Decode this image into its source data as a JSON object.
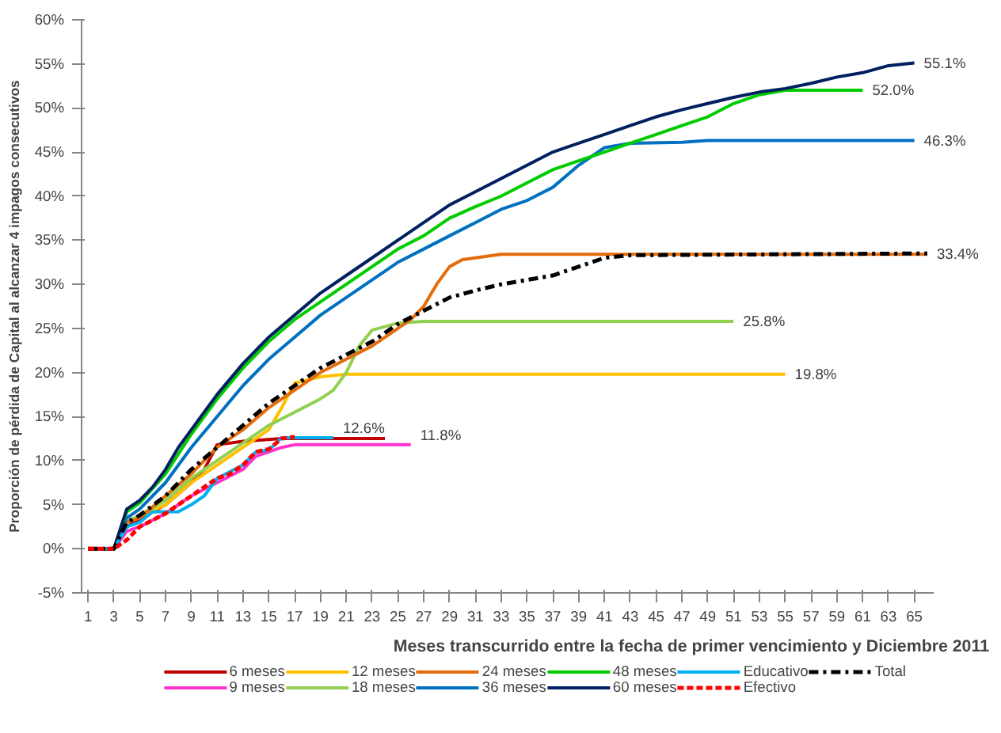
{
  "chart_data": {
    "type": "line",
    "xlabel": "Meses transcurrido entre la fecha de primer vencimiento y Diciembre 2011",
    "ylabel": "Proporción de pérdida de Capital al alcanzar 4 impagos consecutivos",
    "xlim": [
      0.5,
      66.5
    ],
    "xticks": [
      1,
      3,
      5,
      7,
      9,
      11,
      13,
      15,
      17,
      19,
      21,
      23,
      25,
      27,
      29,
      31,
      33,
      35,
      37,
      39,
      41,
      43,
      45,
      47,
      49,
      51,
      53,
      55,
      57,
      59,
      61,
      63,
      65
    ],
    "ylim": [
      -5,
      60
    ],
    "yticks": [
      {
        "value": -5,
        "label": "-5%"
      },
      {
        "value": 0,
        "label": "0%"
      },
      {
        "value": 5,
        "label": "5%"
      },
      {
        "value": 10,
        "label": "10%"
      },
      {
        "value": 15,
        "label": "15%"
      },
      {
        "value": 20,
        "label": "20%"
      },
      {
        "value": 25,
        "label": "25%"
      },
      {
        "value": 30,
        "label": "30%"
      },
      {
        "value": 35,
        "label": "35%"
      },
      {
        "value": 40,
        "label": "40%"
      },
      {
        "value": 45,
        "label": "45%"
      },
      {
        "value": 50,
        "label": "50%"
      },
      {
        "value": 55,
        "label": "55%"
      },
      {
        "value": 60,
        "label": "60%"
      }
    ],
    "grid": false,
    "legend": "bottom",
    "marker": "none",
    "series": [
      {
        "name": "6 meses",
        "color": "#c00000",
        "x": [
          1,
          3,
          4,
          7,
          9,
          10,
          11,
          13,
          16,
          24
        ],
        "values": [
          0,
          0,
          2.5,
          5,
          7.5,
          9,
          11.8,
          12.2,
          12.5,
          12.5
        ]
      },
      {
        "name": "9 meses",
        "color": "#ff33cc",
        "x": [
          1,
          3,
          4,
          5,
          7,
          9,
          11,
          13,
          14,
          15,
          16,
          17,
          26
        ],
        "values": [
          0,
          0,
          2,
          2.5,
          4,
          6,
          7.5,
          9,
          10.5,
          11,
          11.5,
          11.8,
          11.8
        ]
      },
      {
        "name": "12 meses",
        "color": "#ffc000",
        "x": [
          1,
          3,
          4,
          7,
          9,
          11,
          13,
          15,
          16,
          17,
          19,
          21,
          55
        ],
        "values": [
          0,
          0,
          3,
          5,
          7.5,
          9.5,
          11.5,
          13.5,
          16,
          18.8,
          19.5,
          19.8,
          19.8
        ]
      },
      {
        "name": "18 meses",
        "color": "#92d050",
        "x": [
          1,
          3,
          4,
          7,
          9,
          11,
          13,
          15,
          17,
          19,
          20,
          21,
          22,
          23,
          25,
          27,
          51
        ],
        "values": [
          0,
          0,
          3,
          5.5,
          8,
          10,
          12,
          14,
          15.5,
          17,
          18,
          20,
          23,
          24.8,
          25.6,
          25.8,
          25.8
        ]
      },
      {
        "name": "24 meses",
        "color": "#e46c0a",
        "x": [
          1,
          3,
          4,
          5,
          7,
          9,
          11,
          13,
          15,
          17,
          19,
          21,
          23,
          25,
          26,
          27,
          28,
          29,
          30,
          31,
          33,
          66
        ],
        "values": [
          0,
          0,
          3,
          3.5,
          6,
          8.5,
          11.5,
          13.5,
          16,
          18,
          20,
          21.5,
          23,
          25,
          26,
          27.5,
          30,
          32,
          32.8,
          33,
          33.4,
          33.4
        ]
      },
      {
        "name": "36 meses",
        "color": "#0070c0",
        "x": [
          1,
          3,
          4,
          5,
          7,
          9,
          11,
          13,
          15,
          17,
          19,
          21,
          23,
          25,
          27,
          29,
          31,
          33,
          35,
          37,
          39,
          41,
          43,
          47,
          49,
          65
        ],
        "values": [
          0,
          0,
          3.5,
          4.5,
          7.5,
          11.5,
          15,
          18.5,
          21.5,
          24,
          26.5,
          28.5,
          30.5,
          32.5,
          34,
          35.5,
          37,
          38.5,
          39.5,
          41,
          43.5,
          45.5,
          46,
          46.1,
          46.3,
          46.3
        ]
      },
      {
        "name": "48 meses",
        "color": "#00cc00",
        "x": [
          1,
          3,
          4,
          5,
          7,
          9,
          11,
          13,
          15,
          17,
          19,
          21,
          23,
          25,
          27,
          29,
          31,
          33,
          35,
          37,
          39,
          41,
          43,
          45,
          47,
          49,
          51,
          53,
          55,
          61
        ],
        "values": [
          0,
          0,
          4.2,
          5.2,
          8.5,
          13,
          17,
          20.5,
          23.5,
          26,
          28,
          30,
          32,
          34,
          35.5,
          37.5,
          38.8,
          40,
          41.5,
          43,
          44,
          45,
          46,
          47,
          48,
          49,
          50.5,
          51.5,
          52,
          52
        ]
      },
      {
        "name": "60 meses",
        "color": "#002060",
        "x": [
          1,
          3,
          4,
          5,
          6,
          7,
          8,
          9,
          11,
          13,
          15,
          17,
          19,
          21,
          23,
          25,
          27,
          29,
          31,
          33,
          35,
          37,
          39,
          41,
          43,
          45,
          47,
          49,
          51,
          53,
          55,
          57,
          59,
          61,
          63,
          65
        ],
        "values": [
          0,
          0,
          4.5,
          5.5,
          7,
          9,
          11.5,
          13.5,
          17.5,
          21,
          24,
          26.5,
          29,
          31,
          33,
          35,
          37,
          39,
          40.5,
          42,
          43.5,
          45,
          46,
          47,
          48,
          49,
          49.8,
          50.5,
          51.2,
          51.8,
          52.2,
          52.8,
          53.5,
          54,
          54.8,
          55.1
        ]
      },
      {
        "name": "Educativo",
        "color": "#00b0f0",
        "x": [
          1,
          3,
          4,
          5,
          6,
          8,
          9,
          10,
          11,
          13,
          14,
          15,
          16,
          20
        ],
        "values": [
          0,
          0,
          2.5,
          3,
          4.2,
          4.2,
          5,
          6,
          8,
          9.5,
          11,
          11.2,
          12.6,
          12.6
        ]
      },
      {
        "name": "Efectivo",
        "color": "#ff0000",
        "line_style": "dashed",
        "x": [
          1,
          3,
          4,
          5,
          7,
          9,
          10,
          11,
          12,
          13,
          14,
          15,
          16,
          17
        ],
        "values": [
          0,
          0,
          1,
          2.5,
          4,
          6,
          7,
          8,
          8.5,
          9.5,
          11,
          11.3,
          12.5,
          12.7
        ]
      },
      {
        "name": "Total",
        "color": "#000000",
        "line_style": "dashdot",
        "x": [
          1,
          3,
          4,
          5,
          7,
          9,
          11,
          13,
          15,
          17,
          19,
          21,
          23,
          25,
          27,
          29,
          31,
          33,
          35,
          37,
          39,
          41,
          43,
          66
        ],
        "values": [
          0,
          0,
          3,
          3.8,
          6,
          9,
          11.5,
          14,
          16.5,
          18.5,
          20.5,
          22,
          23.5,
          25.5,
          27,
          28.5,
          29.3,
          30,
          30.5,
          31,
          32,
          33,
          33.3,
          33.5
        ]
      }
    ],
    "annotations": [
      {
        "text": "55.1%",
        "x": 65,
        "y": 55.1
      },
      {
        "text": "52.0%",
        "x": 61,
        "y": 52.0
      },
      {
        "text": "46.3%",
        "x": 65,
        "y": 46.3
      },
      {
        "text": "33.4%",
        "x": 66,
        "y": 33.4
      },
      {
        "text": "25.8%",
        "x": 51,
        "y": 25.8
      },
      {
        "text": "19.8%",
        "x": 55,
        "y": 19.8
      },
      {
        "text": "12.6%",
        "x": 20,
        "y": 12.6
      },
      {
        "text": "11.8%",
        "x": 26,
        "y": 11.8
      }
    ]
  }
}
